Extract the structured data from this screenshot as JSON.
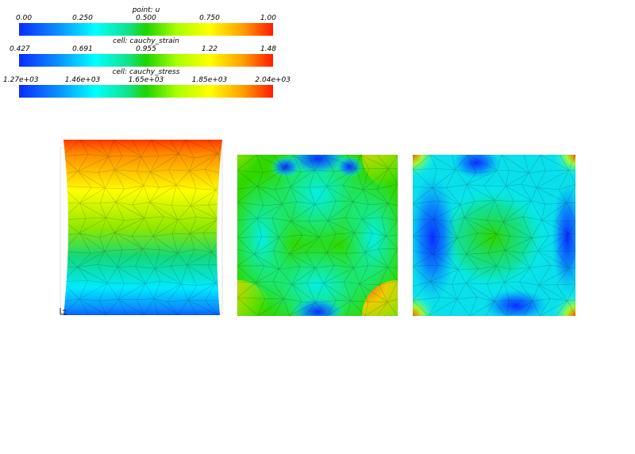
{
  "colorbars": [
    {
      "title": "point: u",
      "ticks": [
        "0.00",
        "0.250",
        "0.500",
        "0.750",
        "1.00"
      ]
    },
    {
      "title": "cell: cauchy_strain",
      "ticks": [
        "0.427",
        "0.691",
        "0.955",
        "1.22",
        "1.48"
      ]
    },
    {
      "title": "cell: cauchy_stress",
      "ticks": [
        "1.27e+03",
        "1.46e+03",
        "1.65e+03",
        "1.85e+03",
        "2.04e+03"
      ]
    }
  ],
  "colors": {
    "blue": "#0a2bff",
    "cyan": "#00ffff",
    "green": "#1ed400",
    "yellow": "#ffff00",
    "red": "#ff1a00"
  }
}
